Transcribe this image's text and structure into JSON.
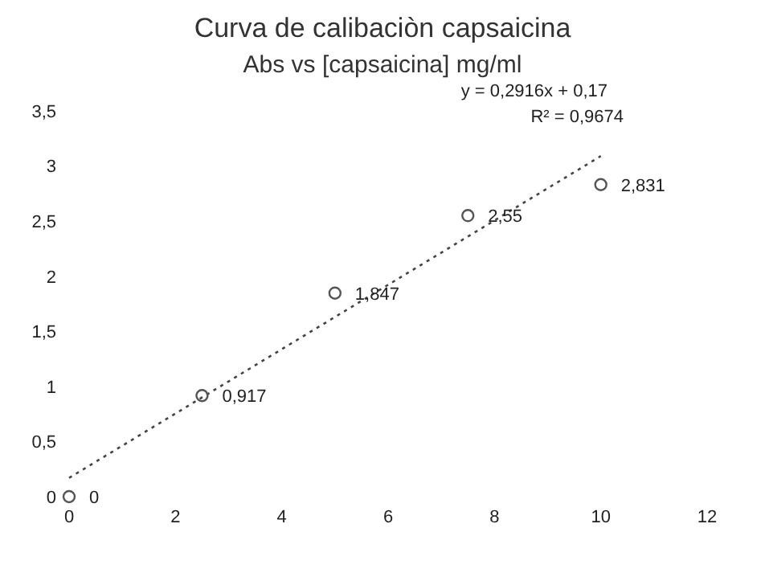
{
  "chart_data": {
    "type": "scatter",
    "title": "Curva de calibaciòn capsaicina",
    "subtitle": "Abs vs [capsaicina] mg/ml",
    "series": [
      {
        "color": "#555555",
        "marker": "circle",
        "x": [
          0,
          2.5,
          5,
          7.5,
          10
        ],
        "values": [
          0,
          0.917,
          1.847,
          2.55,
          2.831
        ],
        "value_labels": [
          "0",
          "0,917",
          "1,847",
          "2,55",
          "2,831"
        ]
      },
      {
        "type": "line",
        "color": "#444444",
        "marker": "none",
        "line_style": "dotted",
        "x": [
          0,
          10
        ],
        "values": [
          0.17,
          3.09
        ]
      }
    ],
    "annotations": [
      "y = 0,2916x + 0,17",
      "R² = 0,9674"
    ],
    "xlim": [
      0,
      12
    ],
    "xticks": [
      0,
      2,
      4,
      6,
      8,
      10,
      12
    ],
    "ylim": [
      0,
      3.5
    ],
    "yticks": [
      0,
      {
        "value": 0.5,
        "label": "0,5"
      },
      1,
      {
        "value": 1.5,
        "label": "1,5"
      },
      2,
      {
        "value": 2.5,
        "label": "2,5"
      },
      3,
      {
        "value": 3.5,
        "label": "3,5"
      }
    ],
    "grid": false,
    "legend": false
  }
}
